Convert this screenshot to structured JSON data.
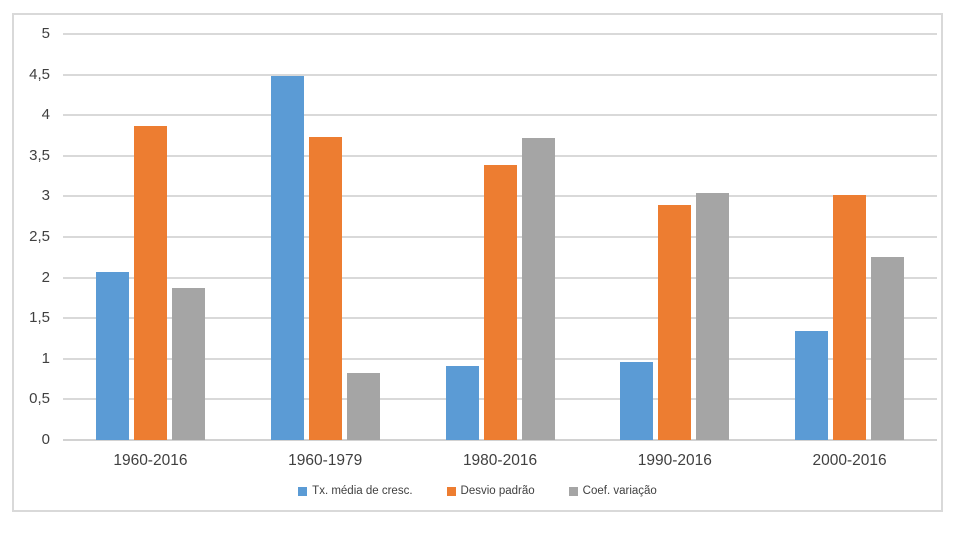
{
  "chart_data": {
    "type": "bar",
    "title": "",
    "categories": [
      "1960-2016",
      "1960-1979",
      "1980-2016",
      "1990-2016",
      "2000-2016"
    ],
    "series": [
      {
        "name": "Tx. média de cresc.",
        "color": "#5B9BD5",
        "values": [
          2.07,
          4.48,
          0.91,
          0.96,
          1.34
        ]
      },
      {
        "name": "Desvio padrão",
        "color": "#ED7D31",
        "values": [
          3.87,
          3.73,
          3.39,
          2.9,
          3.02
        ]
      },
      {
        "name": "Coef. variação",
        "color": "#A5A5A5",
        "values": [
          1.87,
          0.83,
          3.72,
          3.04,
          2.26
        ]
      }
    ],
    "xlabel": "",
    "ylabel": "",
    "ylim": [
      0,
      5
    ],
    "y_ticks": [
      {
        "value": 0,
        "label": "0"
      },
      {
        "value": 0.5,
        "label": "0,5"
      },
      {
        "value": 1,
        "label": "1"
      },
      {
        "value": 1.5,
        "label": "1,5"
      },
      {
        "value": 2,
        "label": "2"
      },
      {
        "value": 2.5,
        "label": "2,5"
      },
      {
        "value": 3,
        "label": "3"
      },
      {
        "value": 3.5,
        "label": "3,5"
      },
      {
        "value": 4,
        "label": "4"
      },
      {
        "value": 4.5,
        "label": "4,5"
      },
      {
        "value": 5,
        "label": "5"
      }
    ],
    "grid": true,
    "legend_position": "bottom"
  },
  "colors": {
    "background": "#FFFFFF",
    "frame_border": "#D9D9D9",
    "gridline": "#D9D9D9",
    "axis_line": "#D2D2D2",
    "label_text": "#404040"
  }
}
